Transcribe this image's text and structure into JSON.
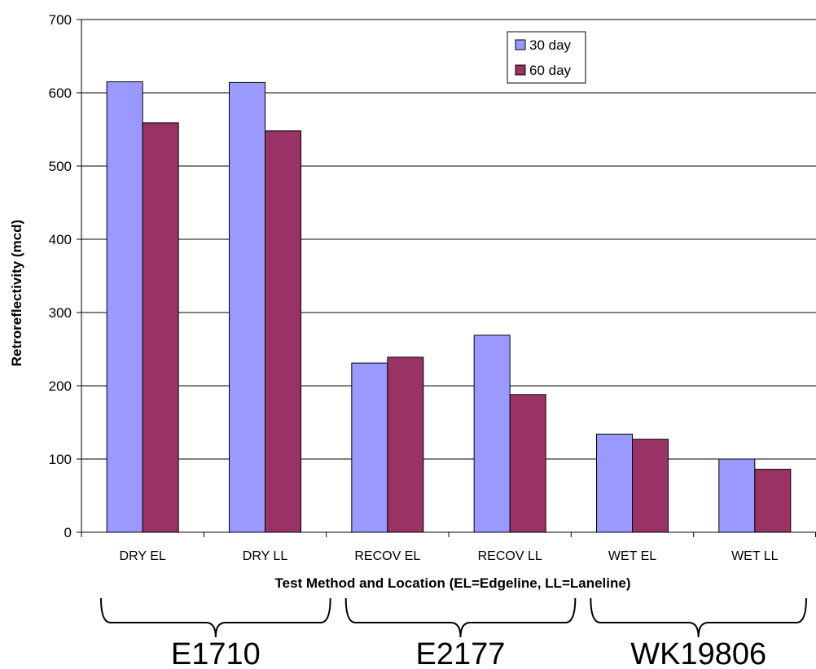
{
  "chart_data": {
    "type": "bar",
    "categories": [
      "DRY EL",
      "DRY LL",
      "RECOV EL",
      "RECOV LL",
      "WET EL",
      "WET LL"
    ],
    "series": [
      {
        "name": "30 day",
        "color": "#9999ff",
        "values": [
          615,
          614,
          231,
          269,
          134,
          100
        ]
      },
      {
        "name": "60 day",
        "color": "#993366",
        "values": [
          559,
          548,
          239,
          188,
          127,
          86
        ]
      }
    ],
    "xlabel": "Test Method and Location (EL=Edgeline, LL=Laneline)",
    "ylabel": "Retroreflectivity (mcd)",
    "ylim": [
      0,
      700
    ],
    "yticks": [
      0,
      100,
      200,
      300,
      400,
      500,
      600,
      700
    ],
    "grid": true,
    "legend_position": "top-right",
    "groups": [
      {
        "label": "E1710",
        "categories": [
          "DRY EL",
          "DRY LL"
        ]
      },
      {
        "label": "E2177",
        "categories": [
          "RECOV EL",
          "RECOV LL"
        ]
      },
      {
        "label": "WK19806",
        "categories": [
          "WET EL",
          "WET LL"
        ]
      }
    ]
  }
}
